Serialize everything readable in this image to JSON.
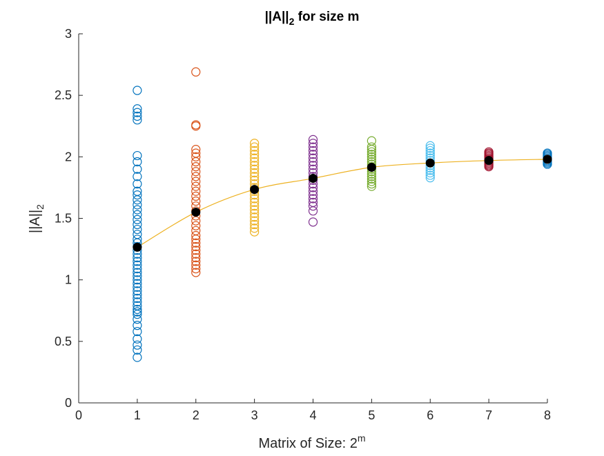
{
  "chart_data": {
    "type": "scatter",
    "title": {
      "main": "||A||",
      "sub": "2",
      "rest": " for size m"
    },
    "xlabel": {
      "main": "Matrix of Size: 2",
      "sup": "m"
    },
    "ylabel": {
      "main": "||A||",
      "sub": "2"
    },
    "xlim": [
      0,
      8
    ],
    "ylim": [
      0,
      3
    ],
    "xticks": [
      "0",
      "1",
      "2",
      "3",
      "4",
      "5",
      "6",
      "7",
      "8"
    ],
    "yticks": [
      "0",
      "0.5",
      "1",
      "1.5",
      "2",
      "2.5",
      "3"
    ],
    "grid": false,
    "legend": "none",
    "mean_line_color": "#EDB120",
    "mean_marker_color": "#000000",
    "series": [
      {
        "x": 1,
        "color": "#0072BD",
        "mean": 1.265,
        "values": [
          0.37,
          0.43,
          0.47,
          0.52,
          0.58,
          0.63,
          0.68,
          0.72,
          0.74,
          0.76,
          0.79,
          0.82,
          0.85,
          0.88,
          0.91,
          0.94,
          0.97,
          1.0,
          1.03,
          1.06,
          1.09,
          1.12,
          1.15,
          1.18,
          1.21,
          1.24,
          1.27,
          1.3,
          1.33,
          1.37,
          1.41,
          1.45,
          1.49,
          1.53,
          1.57,
          1.61,
          1.65,
          1.69,
          1.72,
          1.78,
          1.84,
          1.9,
          1.96,
          2.01,
          2.3,
          2.33,
          2.36,
          2.39,
          2.54
        ]
      },
      {
        "x": 2,
        "color": "#D95319",
        "mean": 1.55,
        "values": [
          1.06,
          1.09,
          1.12,
          1.15,
          1.18,
          1.21,
          1.24,
          1.27,
          1.3,
          1.33,
          1.36,
          1.4,
          1.44,
          1.48,
          1.52,
          1.56,
          1.6,
          1.64,
          1.68,
          1.72,
          1.76,
          1.8,
          1.84,
          1.88,
          1.92,
          1.96,
          2.0,
          2.03,
          2.06,
          2.25,
          2.26,
          2.69
        ]
      },
      {
        "x": 3,
        "color": "#EDB120",
        "mean": 1.735,
        "values": [
          1.39,
          1.42,
          1.45,
          1.48,
          1.51,
          1.54,
          1.57,
          1.6,
          1.63,
          1.66,
          1.69,
          1.72,
          1.75,
          1.78,
          1.81,
          1.84,
          1.87,
          1.9,
          1.93,
          1.96,
          1.99,
          2.02,
          2.05,
          2.08,
          2.11
        ]
      },
      {
        "x": 4,
        "color": "#7E2F8E",
        "mean": 1.825,
        "values": [
          1.47,
          1.56,
          1.6,
          1.63,
          1.66,
          1.69,
          1.72,
          1.75,
          1.78,
          1.81,
          1.84,
          1.87,
          1.9,
          1.93,
          1.96,
          1.99,
          2.02,
          2.05,
          2.08,
          2.11,
          2.14
        ]
      },
      {
        "x": 5,
        "color": "#77AC30",
        "mean": 1.915,
        "values": [
          1.76,
          1.78,
          1.8,
          1.82,
          1.84,
          1.86,
          1.88,
          1.9,
          1.92,
          1.94,
          1.96,
          1.98,
          2.0,
          2.02,
          2.04,
          2.06,
          2.08,
          2.13
        ]
      },
      {
        "x": 6,
        "color": "#4DBEEE",
        "mean": 1.95,
        "values": [
          1.83,
          1.85,
          1.87,
          1.89,
          1.91,
          1.93,
          1.95,
          1.97,
          1.99,
          2.01,
          2.03,
          2.05,
          2.07,
          2.09
        ]
      },
      {
        "x": 7,
        "color": "#A2142F",
        "mean": 1.97,
        "values": [
          1.92,
          1.93,
          1.94,
          1.95,
          1.96,
          1.97,
          1.98,
          1.99,
          2.0,
          2.01,
          2.02,
          2.03,
          2.04
        ]
      },
      {
        "x": 8,
        "color": "#0072BD",
        "mean": 1.98,
        "values": [
          1.94,
          1.95,
          1.96,
          1.97,
          1.98,
          1.99,
          2.0,
          2.01,
          2.02,
          2.03
        ]
      }
    ]
  }
}
